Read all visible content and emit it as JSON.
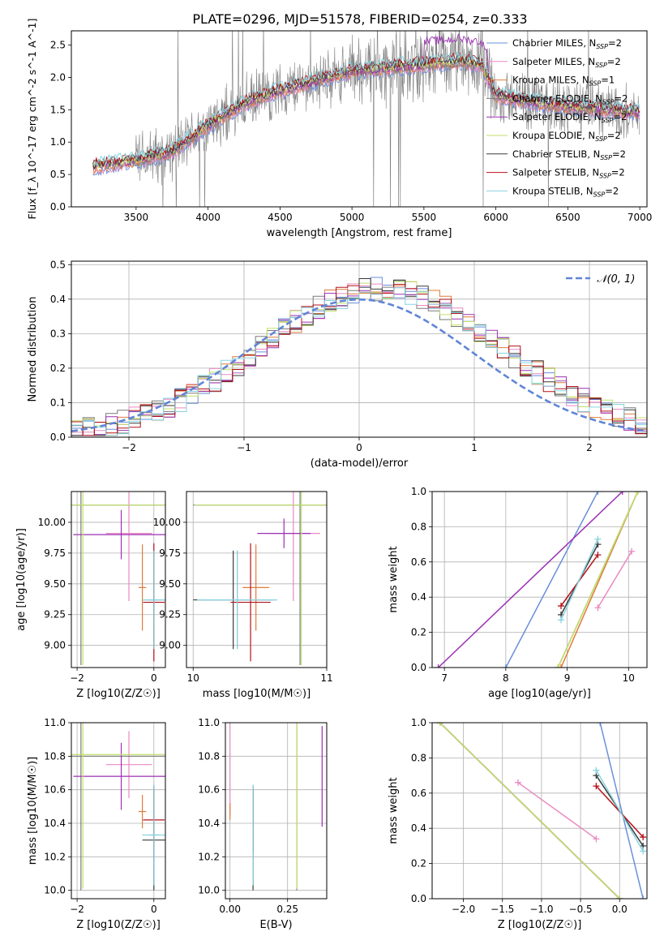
{
  "figure_title": "PLATE=0296, MJD=51578, FIBERID=0254, z=0.333",
  "colors": {
    "Chabrier MILES": "#6a8fd8",
    "Salpeter MILES": "#e989c1",
    "Kroupa MILES": "#e07b3a",
    "Chabrier ELODIE": "#7a7a7a",
    "Salpeter ELODIE": "#9b31b3",
    "Kroupa ELODIE": "#c2e26a",
    "Chabrier STELIB": "#3a3a3a",
    "Salpeter STELIB": "#b3121a",
    "Kroupa STELIB": "#86d3df",
    "normal": "#5f85d6"
  },
  "chart_data": [
    {
      "id": "spectrum",
      "type": "line",
      "title": "PLATE=0296, MJD=51578, FIBERID=0254, z=0.333",
      "xlabel": "wavelength [Angstrom, rest frame]",
      "ylabel": "Flux [f_λ 10^-17 erg cm^-2 s^-1 A^-1]",
      "xlim": [
        3050,
        7050
      ],
      "ylim": [
        0,
        2.72
      ],
      "xticks": [
        3500,
        4000,
        4500,
        5000,
        5500,
        6000,
        6500,
        7000
      ],
      "yticks": [
        0.0,
        0.5,
        1.0,
        1.5,
        2.0,
        2.5
      ],
      "legend_position": "right",
      "legend": [
        {
          "name": "Chabrier MILES",
          "nssp": "2"
        },
        {
          "name": "Salpeter MILES",
          "nssp": "2"
        },
        {
          "name": "Kroupa MILES",
          "nssp": "1"
        },
        {
          "name": "Chabrier ELODIE",
          "nssp": "2"
        },
        {
          "name": "Salpeter ELODIE",
          "nssp": "2"
        },
        {
          "name": "Kroupa ELODIE",
          "nssp": "2"
        },
        {
          "name": "Chabrier STELIB",
          "nssp": "2"
        },
        {
          "name": "Salpeter STELIB",
          "nssp": "2"
        },
        {
          "name": "Kroupa STELIB",
          "nssp": "2"
        }
      ],
      "data_envelope": {
        "x": [
          3200,
          3500,
          3750,
          4000,
          4250,
          4500,
          4750,
          5000,
          5250,
          5500,
          5750,
          5900,
          6000,
          6250,
          6500,
          6800,
          7000
        ],
        "y": [
          0.62,
          0.72,
          0.85,
          1.25,
          1.6,
          1.8,
          1.95,
          2.1,
          2.15,
          2.2,
          2.25,
          2.2,
          1.72,
          1.62,
          1.55,
          1.5,
          1.45
        ]
      },
      "model_envelope": {
        "x": [
          3200,
          3500,
          3750,
          4000,
          4250,
          4500,
          4750,
          5000,
          5250,
          5500,
          5750,
          5900,
          6000,
          6250,
          6500,
          6800,
          7000
        ],
        "y": [
          0.62,
          0.72,
          0.85,
          1.25,
          1.6,
          1.8,
          1.95,
          2.1,
          2.15,
          2.2,
          2.25,
          2.2,
          1.72,
          1.62,
          1.55,
          1.5,
          1.45
        ]
      }
    },
    {
      "id": "residuals",
      "type": "line",
      "xlabel": "(data-model)/error",
      "ylabel": "Normed distribution",
      "xlim": [
        -2.5,
        2.5
      ],
      "ylim": [
        0,
        0.51
      ],
      "xticks": [
        -2,
        -1,
        0,
        1,
        2
      ],
      "yticks": [
        0.0,
        0.1,
        0.2,
        0.3,
        0.4,
        0.5
      ],
      "legend_position": "top-right",
      "legend": [
        "𝒩(0, 1)"
      ],
      "series": [
        {
          "name": "N(0,1)",
          "values_fn": "gaussian",
          "mean": 0,
          "sigma": 1
        }
      ],
      "hist_bin_width": 0.1,
      "hist_range": [
        -2.5,
        2.5
      ]
    },
    {
      "id": "age_vs_Z",
      "type": "scatter",
      "xlabel": "Z [log10(Z/Z☉)]",
      "ylabel": "age [log10(age/yr)]",
      "xlim": [
        -2.15,
        0.3
      ],
      "ylim": [
        8.82,
        10.25
      ],
      "xticks": [
        -2,
        0
      ],
      "yticks": [
        9.0,
        9.25,
        9.5,
        9.75,
        10.0
      ],
      "points": [
        {
          "model": "Chabrier MILES",
          "x": 0.0,
          "y": 9.37,
          "xerr": 0.12,
          "yerr": 0.4
        },
        {
          "model": "Salpeter MILES",
          "x": -0.65,
          "y": 9.91,
          "xerr": 0.6,
          "yerr": 0.55
        },
        {
          "model": "Kroupa MILES",
          "x": -0.3,
          "y": 9.47,
          "xerr": 0.1,
          "yerr": 0.35
        },
        {
          "model": "Chabrier ELODIE",
          "x": -1.9,
          "y": 10.14,
          "xerr": 2.3,
          "yerr": 1.3
        },
        {
          "model": "Salpeter ELODIE",
          "x": -0.85,
          "y": 9.9,
          "xerr": 1.25,
          "yerr": 0.2
        },
        {
          "model": "Kroupa ELODIE",
          "x": -1.85,
          "y": 10.14,
          "xerr": 2.3,
          "yerr": 1.3
        },
        {
          "model": "Chabrier STELIB",
          "x": 0.0,
          "y": 9.37,
          "xerr": 0.3,
          "yerr": 0.4
        },
        {
          "model": "Salpeter STELIB",
          "x": 0.0,
          "y": 9.35,
          "xerr": 0.28,
          "yerr": 0.48
        },
        {
          "model": "Kroupa STELIB",
          "x": 0.0,
          "y": 9.37,
          "xerr": 0.3,
          "yerr": 0.4
        }
      ]
    },
    {
      "id": "age_vs_mass",
      "type": "scatter",
      "xlabel": "mass [log10(M/M☉)]",
      "ylabel": "",
      "xlim": [
        9.95,
        11.0
      ],
      "ylim": [
        8.82,
        10.25
      ],
      "xticks": [
        10,
        11
      ],
      "yticks": [
        9.0,
        9.25,
        9.5,
        9.75,
        10.0
      ],
      "points": [
        {
          "model": "Chabrier MILES",
          "x": 10.33,
          "y": 9.37,
          "xerr": 0.3,
          "yerr": 0.4
        },
        {
          "model": "Salpeter MILES",
          "x": 10.75,
          "y": 9.91,
          "xerr": 0.2,
          "yerr": 0.55
        },
        {
          "model": "Kroupa MILES",
          "x": 10.47,
          "y": 9.47,
          "xerr": 0.1,
          "yerr": 0.35
        },
        {
          "model": "Chabrier ELODIE",
          "x": 10.8,
          "y": 10.14,
          "xerr": 0.8,
          "yerr": 1.3
        },
        {
          "model": "Salpeter ELODIE",
          "x": 10.68,
          "y": 9.91,
          "xerr": 0.2,
          "yerr": 0.12
        },
        {
          "model": "Kroupa ELODIE",
          "x": 10.81,
          "y": 10.14,
          "xerr": 0.8,
          "yerr": 1.3
        },
        {
          "model": "Chabrier STELIB",
          "x": 10.3,
          "y": 9.37,
          "xerr": 0.3,
          "yerr": 0.4
        },
        {
          "model": "Salpeter STELIB",
          "x": 10.43,
          "y": 9.35,
          "xerr": 0.15,
          "yerr": 0.48
        },
        {
          "model": "Kroupa STELIB",
          "x": 10.33,
          "y": 9.37,
          "xerr": 0.3,
          "yerr": 0.4
        }
      ]
    },
    {
      "id": "mw_vs_age",
      "type": "line",
      "xlabel": "age [log10(age/yr)]",
      "ylabel": "mass weight",
      "xlim": [
        6.8,
        10.3
      ],
      "ylim": [
        0,
        1.0
      ],
      "xticks": [
        7,
        8,
        9,
        10
      ],
      "yticks": [
        0.0,
        0.2,
        0.4,
        0.6,
        0.8,
        1.0
      ],
      "series": [
        {
          "name": "Chabrier MILES",
          "x": [
            8.0,
            9.5
          ],
          "y": [
            0.0,
            1.0
          ]
        },
        {
          "name": "Salpeter MILES",
          "x": [
            9.5,
            10.05
          ],
          "y": [
            0.34,
            0.66
          ]
        },
        {
          "name": "Kroupa MILES",
          "x": [
            8.9,
            10.15
          ],
          "y": [
            0.0,
            1.0
          ]
        },
        {
          "name": "Chabrier ELODIE",
          "x": [
            8.85,
            10.15
          ],
          "y": [
            0.0,
            1.0
          ]
        },
        {
          "name": "Salpeter ELODIE",
          "x": [
            6.9,
            9.9
          ],
          "y": [
            0.0,
            1.0
          ]
        },
        {
          "name": "Kroupa ELODIE",
          "x": [
            8.85,
            10.15
          ],
          "y": [
            0.0,
            1.0
          ]
        },
        {
          "name": "Chabrier STELIB",
          "x": [
            8.9,
            9.5
          ],
          "y": [
            0.3,
            0.7
          ]
        },
        {
          "name": "Salpeter STELIB",
          "x": [
            8.9,
            9.5
          ],
          "y": [
            0.35,
            0.64
          ]
        },
        {
          "name": "Kroupa STELIB",
          "x": [
            8.9,
            9.5
          ],
          "y": [
            0.27,
            0.73
          ]
        }
      ]
    },
    {
      "id": "mass_vs_Z",
      "type": "scatter",
      "xlabel": "Z [log10(Z/Z☉)]",
      "ylabel": "mass [log10(M/M☉)]",
      "xlim": [
        -2.15,
        0.3
      ],
      "ylim": [
        9.95,
        11.0
      ],
      "xticks": [
        -2,
        0
      ],
      "yticks": [
        10.0,
        10.2,
        10.4,
        10.6,
        10.8,
        11.0
      ],
      "points": [
        {
          "model": "Chabrier MILES",
          "x": 0.0,
          "y": 10.33,
          "xerr": 0.12,
          "yerr": 0.3
        },
        {
          "model": "Salpeter MILES",
          "x": -0.65,
          "y": 10.75,
          "xerr": 0.6,
          "yerr": 0.2
        },
        {
          "model": "Kroupa MILES",
          "x": -0.3,
          "y": 10.47,
          "xerr": 0.1,
          "yerr": 0.1
        },
        {
          "model": "Chabrier ELODIE",
          "x": -1.9,
          "y": 10.8,
          "xerr": 2.3,
          "yerr": 0.8
        },
        {
          "model": "Salpeter ELODIE",
          "x": -0.85,
          "y": 10.68,
          "xerr": 1.25,
          "yerr": 0.2
        },
        {
          "model": "Kroupa ELODIE",
          "x": -1.85,
          "y": 10.81,
          "xerr": 2.3,
          "yerr": 0.8
        },
        {
          "model": "Chabrier STELIB",
          "x": 0.0,
          "y": 10.3,
          "xerr": 0.3,
          "yerr": 0.3
        },
        {
          "model": "Salpeter STELIB",
          "x": 0.0,
          "y": 10.42,
          "xerr": 0.28,
          "yerr": 0.2
        },
        {
          "model": "Kroupa STELIB",
          "x": 0.0,
          "y": 10.33,
          "xerr": 0.3,
          "yerr": 0.3
        }
      ]
    },
    {
      "id": "mass_vs_ebv",
      "type": "scatter",
      "xlabel": "E(B-V)",
      "ylabel": "",
      "xlim": [
        -0.02,
        0.42
      ],
      "ylim": [
        9.95,
        11.0
      ],
      "xticks": [
        0.0,
        0.25
      ],
      "yticks": [
        10.0,
        10.2,
        10.4,
        10.6,
        10.8,
        11.0
      ],
      "points": [
        {
          "model": "Chabrier MILES",
          "x": 0.1,
          "y": 10.33,
          "yerr": 0.3
        },
        {
          "model": "Salpeter MILES",
          "x": 0.0,
          "y": 10.75,
          "yerr": 0.3
        },
        {
          "model": "Kroupa MILES",
          "x": 0.0,
          "y": 10.47,
          "yerr": 0.05
        },
        {
          "model": "Chabrier ELODIE",
          "x": 0.29,
          "y": 10.8,
          "yerr": 0.8
        },
        {
          "model": "Salpeter ELODIE",
          "x": 0.4,
          "y": 10.68,
          "yerr": 0.3
        },
        {
          "model": "Kroupa ELODIE",
          "x": 0.29,
          "y": 10.81,
          "yerr": 0.8
        },
        {
          "model": "Chabrier STELIB",
          "x": 0.1,
          "y": 10.3,
          "yerr": 0.3
        },
        {
          "model": "Salpeter STELIB",
          "x": 0.1,
          "y": 10.42,
          "yerr": 0.2
        },
        {
          "model": "Kroupa STELIB",
          "x": 0.1,
          "y": 10.33,
          "yerr": 0.3
        }
      ]
    },
    {
      "id": "mw_vs_Z",
      "type": "line",
      "xlabel": "Z [log10(Z/Z☉)]",
      "ylabel": "mass weight",
      "xlim": [
        -2.4,
        0.35
      ],
      "ylim": [
        0,
        1.0
      ],
      "xticks": [
        -2.0,
        -1.5,
        -1.0,
        -0.5,
        0.0
      ],
      "yticks": [
        0.0,
        0.2,
        0.4,
        0.6,
        0.8,
        1.0
      ],
      "series": [
        {
          "name": "Chabrier MILES",
          "x": [
            -0.25,
            0.3
          ],
          "y": [
            1.0,
            0.0
          ]
        },
        {
          "name": "Salpeter MILES",
          "x": [
            -1.3,
            -0.3
          ],
          "y": [
            0.66,
            0.34
          ]
        },
        {
          "name": "Kroupa MILES",
          "x": [
            -2.3,
            0.0
          ],
          "y": [
            1.0,
            0.0
          ]
        },
        {
          "name": "Chabrier ELODIE",
          "x": [
            -2.3,
            0.0
          ],
          "y": [
            1.0,
            0.0
          ]
        },
        {
          "name": "Salpeter ELODIE",
          "x": [
            -2.3,
            0.0
          ],
          "y": [
            1.0,
            0.0
          ]
        },
        {
          "name": "Kroupa ELODIE",
          "x": [
            -2.3,
            0.0
          ],
          "y": [
            1.0,
            0.0
          ]
        },
        {
          "name": "Chabrier STELIB",
          "x": [
            -0.3,
            0.3
          ],
          "y": [
            0.7,
            0.3
          ]
        },
        {
          "name": "Salpeter STELIB",
          "x": [
            -0.3,
            0.3
          ],
          "y": [
            0.64,
            0.35
          ]
        },
        {
          "name": "Kroupa STELIB",
          "x": [
            -0.3,
            0.3
          ],
          "y": [
            0.73,
            0.27
          ]
        }
      ]
    }
  ]
}
